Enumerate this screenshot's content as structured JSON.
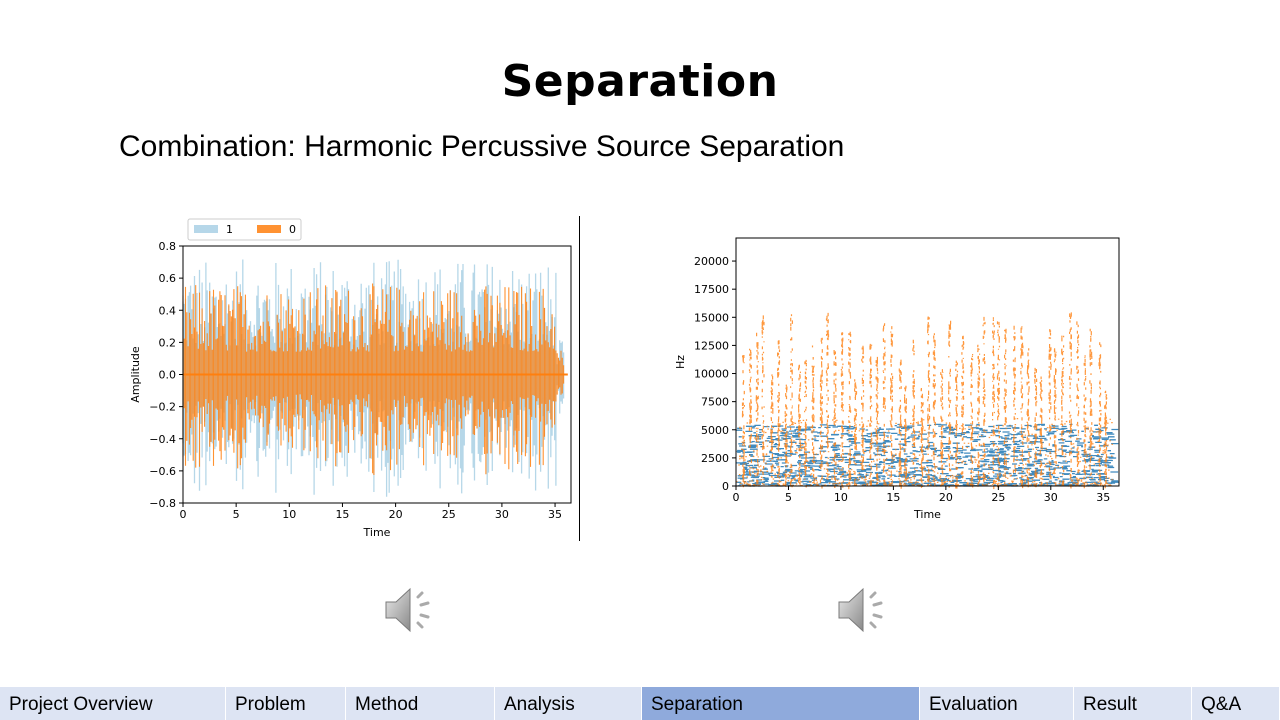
{
  "slide": {
    "title": "Separation",
    "subtitle": "Combination: Harmonic Percussive Source Separation"
  },
  "colors": {
    "harmonic": "#9ecae1",
    "percussive": "#ff7f0e",
    "nav_bg": "#dde4f3",
    "nav_active": "#8faadc"
  },
  "chart_data": [
    {
      "type": "area",
      "chart": "waveform",
      "xlabel": "Time",
      "ylabel": "Amplitude",
      "xlim": [
        0,
        36.5
      ],
      "ylim": [
        -0.8,
        0.8
      ],
      "xticks": [
        0,
        5,
        10,
        15,
        20,
        25,
        30,
        35
      ],
      "yticks": [
        -0.8,
        -0.6,
        -0.4,
        -0.2,
        0.0,
        0.2,
        0.4,
        0.6,
        0.8
      ],
      "ytick_labels": [
        "−0.8",
        "−0.6",
        "−0.4",
        "−0.2",
        "0.0",
        "0.2",
        "0.4",
        "0.6",
        "0.8"
      ],
      "legend": {
        "placement": "top-left",
        "entries": [
          "1",
          "0"
        ]
      },
      "series": [
        {
          "name": "1",
          "color": "#9ecae1",
          "envelope_max": 0.72
        },
        {
          "name": "0",
          "color": "#ff7f0e",
          "envelope_max": 0.73
        }
      ]
    },
    {
      "type": "scatter",
      "chart": "spectrogram",
      "xlabel": "Time",
      "ylabel": "Hz",
      "xlim": [
        0,
        36.5
      ],
      "ylim": [
        0,
        22050
      ],
      "xticks": [
        0,
        5,
        10,
        15,
        20,
        25,
        30,
        35
      ],
      "yticks": [
        0,
        2500,
        5000,
        7500,
        10000,
        12500,
        15000,
        17500,
        20000
      ],
      "series": [
        {
          "color": "#1f77b4",
          "max_hz": 5500
        },
        {
          "color": "#ff7f0e",
          "max_hz": 17000
        }
      ]
    }
  ],
  "audio": {
    "left_icon": "speaker-icon",
    "right_icon": "speaker-icon"
  },
  "nav": {
    "items": [
      {
        "label": "Project Overview",
        "active": false
      },
      {
        "label": "Problem",
        "active": false
      },
      {
        "label": "Method",
        "active": false
      },
      {
        "label": "Analysis",
        "active": false
      },
      {
        "label": "Separation",
        "active": true
      },
      {
        "label": "Evaluation",
        "active": false
      },
      {
        "label": "Result",
        "active": false
      },
      {
        "label": "Q&A",
        "active": false
      }
    ]
  }
}
